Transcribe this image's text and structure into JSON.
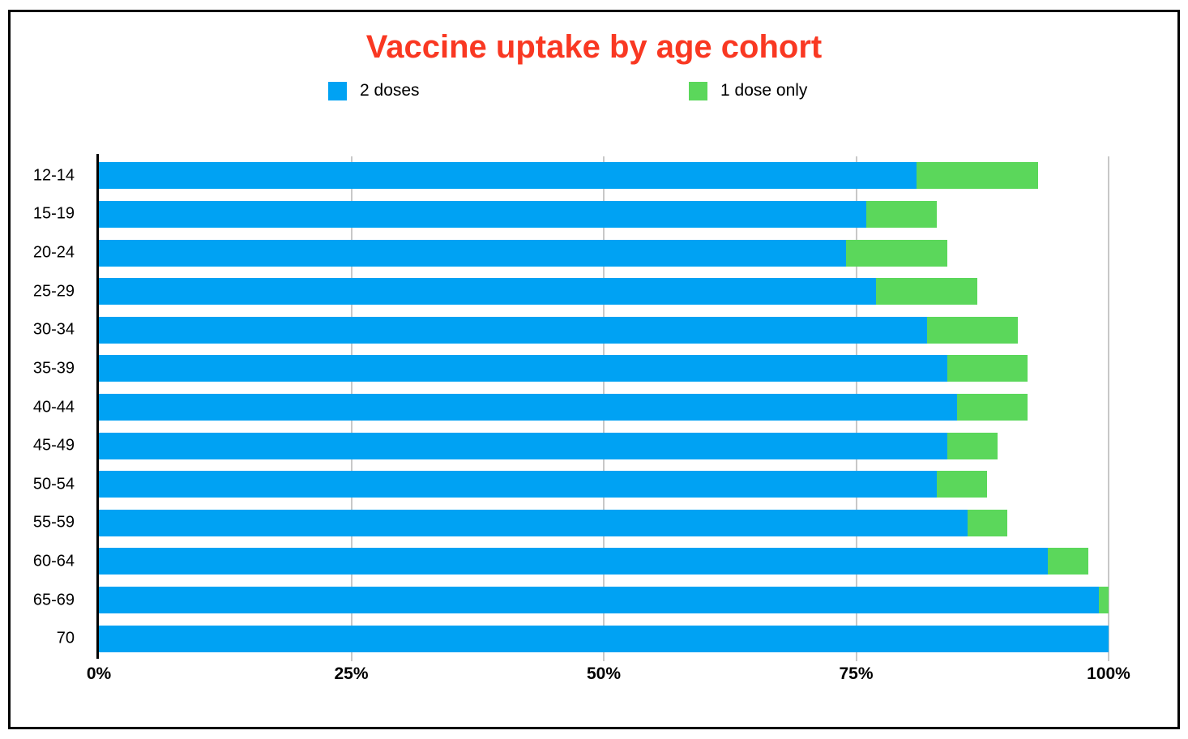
{
  "colors": {
    "title": "#f93822",
    "series_blue": "#00a2f3",
    "series_green": "#5bd75b",
    "gridline": "#c8c8c8",
    "axis": "#000000",
    "frame_border": "#000000",
    "background": "#ffffff"
  },
  "chart_data": {
    "type": "bar",
    "orientation": "horizontal",
    "stacked": true,
    "title": "Vaccine uptake by age cohort",
    "categories": [
      "12-14",
      "15-19",
      "20-24",
      "25-29",
      "30-34",
      "35-39",
      "40-44",
      "45-49",
      "50-54",
      "55-59",
      "60-64",
      "65-69",
      "70"
    ],
    "series": [
      {
        "name": "2 doses",
        "color": "#00a2f3",
        "values": [
          81,
          76,
          74,
          77,
          82,
          84,
          85,
          84,
          83,
          86,
          94,
          99,
          100
        ]
      },
      {
        "name": "1 dose only",
        "color": "#5bd75b",
        "values": [
          12,
          7,
          10,
          10,
          9,
          8,
          7,
          5,
          5,
          4,
          4,
          1,
          0
        ]
      }
    ],
    "x_ticks": [
      {
        "label": "0%",
        "value": 0
      },
      {
        "label": "25%",
        "value": 25
      },
      {
        "label": "50%",
        "value": 50
      },
      {
        "label": "75%",
        "value": 75
      },
      {
        "label": "100%",
        "value": 100
      }
    ],
    "xlim": [
      0,
      100
    ],
    "grid": true,
    "legend_position": "top"
  }
}
